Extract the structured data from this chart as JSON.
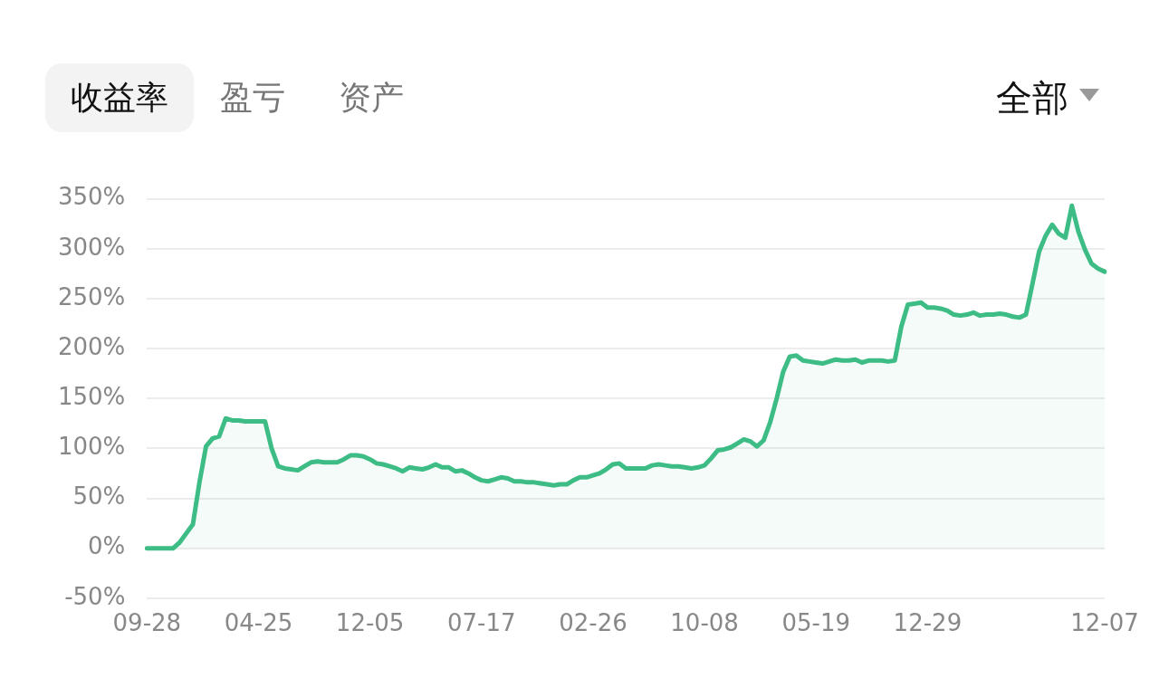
{
  "chart_data": {
    "type": "area",
    "annotations": [
      "收益率",
      "盈亏",
      "资产",
      "全部"
    ],
    "categories": [
      "09-28",
      null,
      null,
      null,
      null,
      null,
      null,
      null,
      null,
      null,
      null,
      null,
      null,
      null,
      null,
      null,
      null,
      "04-25",
      null,
      null,
      null,
      null,
      null,
      null,
      null,
      null,
      null,
      null,
      null,
      null,
      null,
      null,
      null,
      null,
      "12-05",
      null,
      null,
      null,
      null,
      null,
      null,
      null,
      null,
      null,
      null,
      null,
      null,
      null,
      null,
      null,
      null,
      "07-17",
      null,
      null,
      null,
      null,
      null,
      null,
      null,
      null,
      null,
      null,
      null,
      null,
      null,
      null,
      null,
      null,
      "02-26",
      null,
      null,
      null,
      null,
      null,
      null,
      null,
      null,
      null,
      null,
      null,
      null,
      null,
      null,
      null,
      null,
      "10-08",
      null,
      null,
      null,
      null,
      null,
      null,
      null,
      null,
      null,
      null,
      null,
      null,
      null,
      null,
      null,
      null,
      "05-19",
      null,
      null,
      null,
      null,
      null,
      null,
      null,
      null,
      null,
      null,
      null,
      null,
      null,
      null,
      null,
      null,
      "12-29",
      null,
      null,
      null,
      null,
      null,
      null,
      null,
      null,
      null,
      null,
      null,
      null,
      null,
      null,
      null,
      null,
      null,
      null,
      null,
      null,
      null,
      null,
      null,
      null,
      null,
      null,
      "12-07"
    ],
    "ylim": [
      -50,
      350
    ],
    "yticks": [
      {
        "value": -50,
        "label": "-50%"
      },
      {
        "value": 0,
        "label": "0%"
      },
      {
        "value": 50,
        "label": "50%"
      },
      {
        "value": 100,
        "label": "100%"
      },
      {
        "value": 150,
        "label": "150%"
      },
      {
        "value": 200,
        "label": "200%"
      },
      {
        "value": 250,
        "label": "250%"
      },
      {
        "value": 300,
        "label": "300%"
      },
      {
        "value": 350,
        "label": "350%"
      }
    ],
    "grid": "y",
    "marker": "none",
    "line_style": "solid",
    "series": [
      {
        "color": "#3dbd85",
        "values": [
          0,
          0,
          0,
          0,
          0,
          6,
          15,
          24,
          66,
          102,
          110,
          112,
          130,
          128,
          128,
          127,
          127,
          127,
          127,
          100,
          82,
          80,
          79,
          78,
          82,
          86,
          87,
          86,
          86,
          86,
          89,
          93,
          93,
          92,
          89,
          85,
          84,
          82,
          80,
          77,
          81,
          80,
          79,
          81,
          84,
          81,
          81,
          77,
          78,
          75,
          71,
          68,
          67,
          69,
          71,
          70,
          67,
          67,
          66,
          66,
          65,
          64,
          63,
          64,
          64,
          68,
          71,
          71,
          73,
          75,
          79,
          84,
          85,
          80,
          80,
          80,
          80,
          83,
          84,
          83,
          82,
          82,
          81,
          80,
          81,
          83,
          90,
          98,
          99,
          101,
          105,
          109,
          107,
          102,
          108,
          126,
          150,
          177,
          192,
          193,
          188,
          187,
          186,
          185,
          187,
          189,
          188,
          188,
          189,
          186,
          188,
          188,
          188,
          187,
          188,
          222,
          244,
          245,
          246,
          241,
          241,
          240,
          238,
          234,
          233,
          234,
          236,
          233,
          234,
          234,
          235,
          234,
          232,
          231,
          234,
          265,
          297,
          313,
          324,
          315,
          311,
          343,
          317,
          299,
          285,
          280,
          277
        ]
      }
    ]
  }
}
